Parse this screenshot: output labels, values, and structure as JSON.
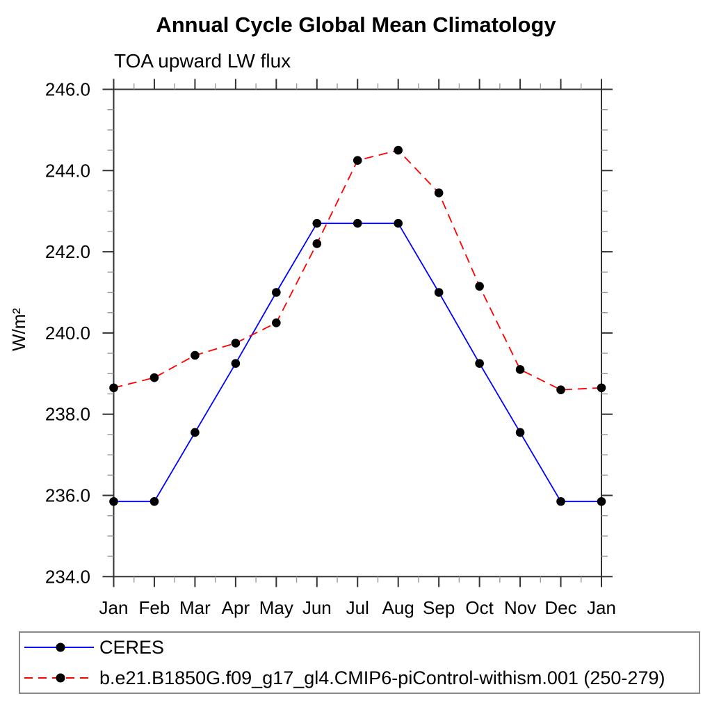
{
  "title": "Annual Cycle Global Mean Climatology",
  "subtitle": "TOA upward LW flux",
  "chart_data": {
    "type": "line",
    "title": "Annual Cycle Global Mean Climatology",
    "subtitle": "TOA upward LW flux",
    "xlabel": "",
    "ylabel": "W/m²",
    "categories": [
      "Jan",
      "Feb",
      "Mar",
      "Apr",
      "May",
      "Jun",
      "Jul",
      "Aug",
      "Sep",
      "Oct",
      "Nov",
      "Dec",
      "Jan"
    ],
    "ylim": [
      234.0,
      246.0
    ],
    "ytick_labels": [
      "234.0",
      "236.0",
      "238.0",
      "240.0",
      "242.0",
      "244.0",
      "246.0"
    ],
    "ytick_interval": 2.0,
    "yminor_interval": 0.5,
    "grid": false,
    "legend_position": "bottom",
    "axis_color": "#333333",
    "minor_tick_color": "#999999",
    "marker_color": "#000000",
    "series": [
      {
        "name": "CERES",
        "color": "#0000ff",
        "line_style": "solid",
        "marker": "filled-circle",
        "values": [
          235.85,
          235.85,
          237.55,
          239.25,
          241.0,
          242.7,
          242.7,
          242.7,
          241.0,
          239.25,
          237.55,
          235.85,
          235.85
        ]
      },
      {
        "name": "b.e21.B1850G.f09_g17_gl4.CMIP6-piControl-withism.001 (250-279)",
        "color": "#ff0000",
        "line_style": "dashed",
        "marker": "filled-circle",
        "values": [
          238.65,
          238.9,
          239.45,
          239.75,
          240.25,
          242.2,
          244.25,
          244.5,
          243.45,
          241.15,
          239.1,
          238.6,
          238.65
        ]
      }
    ]
  }
}
